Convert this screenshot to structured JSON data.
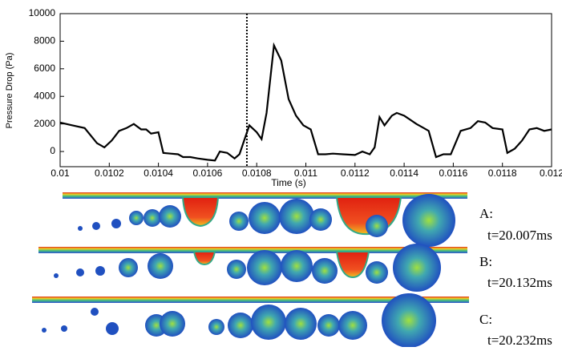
{
  "chart_data": {
    "type": "line",
    "x_label": "Time (s)",
    "y_label": "Pressure Drop (Pa)",
    "xlim": [
      0.01,
      0.012
    ],
    "ylim": [
      -1100,
      10000
    ],
    "xticks": [
      0.01,
      0.0102,
      0.0104,
      0.0106,
      0.0108,
      0.011,
      0.0112,
      0.0114,
      0.0116,
      0.0118,
      0.012
    ],
    "yticks": [
      0,
      2000,
      4000,
      6000,
      8000,
      10000
    ],
    "marker_x": 0.01076,
    "series": [
      {
        "color": "#000000",
        "x": [
          0.01,
          0.01005,
          0.0101,
          0.01015,
          0.01018,
          0.01021,
          0.01024,
          0.01027,
          0.0103,
          0.01033,
          0.01035,
          0.01037,
          0.0104,
          0.01042,
          0.01045,
          0.01048,
          0.0105,
          0.01053,
          0.01056,
          0.0106,
          0.01063,
          0.01065,
          0.01068,
          0.01071,
          0.01073,
          0.01077,
          0.0108,
          0.01082,
          0.01084,
          0.01087,
          0.0109,
          0.01093,
          0.01096,
          0.01099,
          0.01102,
          0.01105,
          0.01108,
          0.01111,
          0.01115,
          0.0112,
          0.01123,
          0.01126,
          0.01128,
          0.0113,
          0.01132,
          0.01135,
          0.01137,
          0.0114,
          0.01145,
          0.01148,
          0.0115,
          0.01153,
          0.01156,
          0.01159,
          0.01163,
          0.01167,
          0.0117,
          0.01173,
          0.01176,
          0.0118,
          0.01182,
          0.01185,
          0.01188,
          0.01191,
          0.01194,
          0.01197,
          0.012
        ],
        "values": [
          2100,
          1900,
          1700,
          600,
          300,
          800,
          1500,
          1700,
          2000,
          1600,
          1600,
          1300,
          1400,
          -100,
          -150,
          -200,
          -400,
          -400,
          -500,
          -600,
          -650,
          0,
          -100,
          -500,
          -200,
          1900,
          1400,
          900,
          2800,
          7700,
          6600,
          3800,
          2600,
          1900,
          1600,
          -200,
          -200,
          -150,
          -200,
          -250,
          0,
          -200,
          300,
          2500,
          1900,
          2600,
          2800,
          2600,
          2000,
          1700,
          1500,
          -400,
          -200,
          -200,
          1500,
          1700,
          2200,
          2100,
          1700,
          1600,
          -100,
          200,
          800,
          1600,
          1700,
          1500,
          1600
        ]
      }
    ]
  },
  "panels": [
    {
      "label": "A:",
      "time": "t=20.007ms"
    },
    {
      "label": "B:",
      "time": "t=20.132ms"
    },
    {
      "label": "C:",
      "time": "t=20.232ms"
    }
  ]
}
